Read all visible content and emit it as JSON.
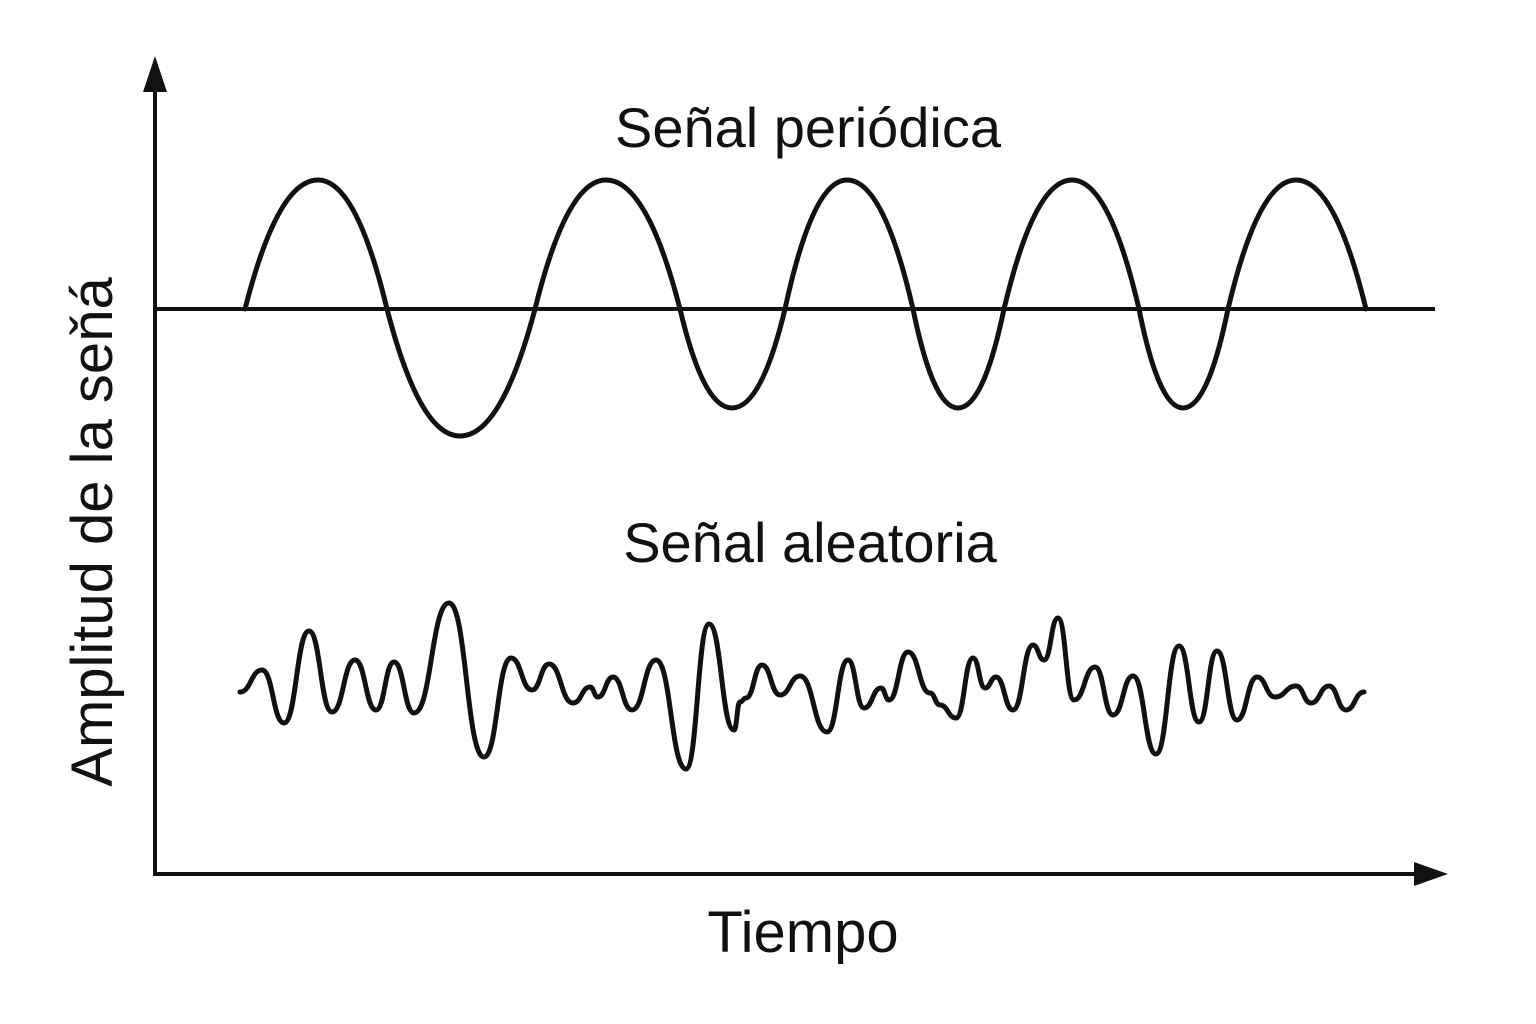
{
  "labels": {
    "periodic_title": "Señal periódica",
    "random_title": "Señal aleatoria",
    "x_axis": "Tiempo",
    "y_axis": "Amplitud de la seňá"
  },
  "colors": {
    "ink": "#111111",
    "background": "#ffffff"
  },
  "signals": {
    "periodic": {
      "type": "sine",
      "full_cycles": 5
    },
    "random": {
      "type": "noise"
    }
  }
}
